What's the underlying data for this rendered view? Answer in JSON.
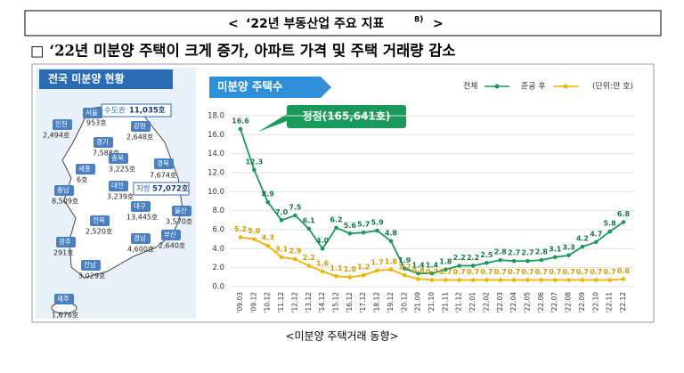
{
  "header": {
    "open": "<",
    "title": "‘22년 부동산업 주요 지표",
    "footnote": "8)",
    "close": ">"
  },
  "heading": "□ ‘22년 미분양 주택이 크게 증가, 아파트 가격 및 주택 거래량 감소",
  "map": {
    "title": "전국 미분양 현황",
    "regions": [
      {
        "name": "인천",
        "value": "2,494호"
      },
      {
        "name": "서울",
        "value": "953호"
      },
      {
        "name": "강원",
        "value": "2,648호"
      },
      {
        "name": "경기",
        "value": "7,588호"
      },
      {
        "name": "충북",
        "value": "3,225호"
      },
      {
        "name": "경북",
        "value": "7,674호"
      },
      {
        "name": "세종",
        "value": "6호"
      },
      {
        "name": "충남",
        "value": "8,509호"
      },
      {
        "name": "대전",
        "value": "3,239호"
      },
      {
        "name": "대구",
        "value": "13,445호"
      },
      {
        "name": "울산",
        "value": "3,570호"
      },
      {
        "name": "전북",
        "value": "2,520호"
      },
      {
        "name": "경남",
        "value": "4,600호"
      },
      {
        "name": "부산",
        "value": "2,640호"
      },
      {
        "name": "광주",
        "value": "291호"
      },
      {
        "name": "전남",
        "value": "3,029호"
      },
      {
        "name": "제주",
        "value": "1,676호"
      }
    ],
    "capital": {
      "name": "수도권",
      "value": "11,035호"
    },
    "provinces": {
      "name": "지방",
      "value": "57,072호"
    }
  },
  "chart_data": {
    "type": "line",
    "title": "미분양 주택수",
    "unit": "(단위:만 호)",
    "annotation": "정점(165,641호)",
    "categories": [
      "'09.03",
      "'09.12",
      "'10.12",
      "'11.12",
      "'12.12",
      "'13.12",
      "'14.12",
      "'15.12",
      "'16.12",
      "'17.12",
      "'18.12",
      "'19.12",
      "'20.12",
      "'21.09",
      "'21.10",
      "'21.11",
      "'21.12",
      "'22.01",
      "'22.02",
      "'22.03",
      "'22.04",
      "'22.05",
      "'22.06",
      "'22.07",
      "'22.08",
      "'22.09",
      "'22.10",
      "'22.11",
      "'22.12"
    ],
    "series": [
      {
        "name": "전체",
        "color": "#1a9a5a",
        "values": [
          16.6,
          12.3,
          8.9,
          7.0,
          7.5,
          6.1,
          4.0,
          6.2,
          5.6,
          5.7,
          5.9,
          4.8,
          1.9,
          1.4,
          1.4,
          1.8,
          2.2,
          2.2,
          2.5,
          2.8,
          2.7,
          2.7,
          2.8,
          3.1,
          3.3,
          4.2,
          4.7,
          5.8,
          6.8
        ],
        "value_labels": [
          "16.6",
          "12.3",
          "8.9",
          "7.0",
          "7.5",
          "6.1",
          "4.0",
          "6.2",
          "5.6",
          "5.7",
          "5.9",
          "4.8",
          "1.9",
          "1.4",
          "1.4",
          "1.8",
          "2.2",
          "2.2",
          "2.5",
          "2.8",
          "2.7",
          "2.7",
          "2.8",
          "3.1",
          "3.3",
          "4.2",
          "4.7",
          "5.8",
          "6.8"
        ]
      },
      {
        "name": "준공 후",
        "color": "#f0b400",
        "values": [
          5.2,
          5.0,
          4.3,
          3.1,
          2.9,
          2.2,
          1.6,
          1.1,
          1.0,
          1.2,
          1.7,
          1.8,
          1.2,
          0.8,
          0.7,
          0.7,
          0.7,
          0.7,
          0.7,
          0.7,
          0.7,
          0.7,
          0.7,
          0.7,
          0.7,
          0.7,
          0.7,
          0.7,
          0.8
        ],
        "value_labels": [
          "5.2",
          "5.0",
          "4.3",
          "3.1",
          "2.9",
          "2.2",
          "1.6",
          "1.1",
          "1.0",
          "1.2",
          "1.7",
          "1.8",
          "1.2",
          "0.8",
          "0.7",
          "0.7",
          "0.7",
          "0.7",
          "0.7",
          "0.7",
          "0.7",
          "0.7",
          "0.7",
          "0.7",
          "0.7",
          "0.7",
          "0.7",
          "0.7",
          "0.8"
        ]
      }
    ],
    "ylim": [
      0,
      18
    ],
    "yticks": [
      {
        "value": 0,
        "label": "0.0"
      },
      {
        "value": 2,
        "label": "2.0"
      },
      {
        "value": 4,
        "label": "4.0"
      },
      {
        "value": 6,
        "label": "6.0"
      },
      {
        "value": 8,
        "label": "8.0"
      },
      {
        "value": 10,
        "label": "10.0"
      },
      {
        "value": 12,
        "label": "12.0"
      },
      {
        "value": 14,
        "label": "14.0"
      },
      {
        "value": 16,
        "label": "16.0"
      },
      {
        "value": 18,
        "label": "18.0"
      }
    ],
    "grid": true
  },
  "caption": "<미분양 주택거래 동향>"
}
